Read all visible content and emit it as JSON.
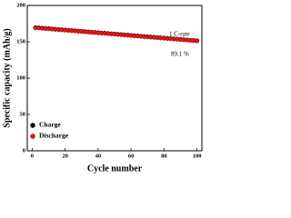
{
  "chart_data": {
    "type": "scatter",
    "xlabel": "Cycle number",
    "ylabel": "Specific capacity (mAh/g)",
    "annotations": [
      "1 C-rate",
      "89.1 %"
    ],
    "x": [
      2,
      4,
      6,
      8,
      10,
      12,
      14,
      16,
      18,
      20,
      22,
      24,
      26,
      28,
      30,
      32,
      34,
      36,
      38,
      40,
      42,
      44,
      46,
      48,
      50,
      52,
      54,
      56,
      58,
      60,
      62,
      64,
      66,
      68,
      70,
      72,
      74,
      76,
      78,
      80,
      82,
      84,
      86,
      88,
      90,
      92,
      94,
      96,
      98,
      100
    ],
    "series": [
      {
        "name": "Charge",
        "color": "#000000",
        "values": [
          169.6,
          169.3,
          168.9,
          168.5,
          168.2,
          167.8,
          167.4,
          167.0,
          166.7,
          166.3,
          165.9,
          165.6,
          165.2,
          164.8,
          164.5,
          164.1,
          163.7,
          163.3,
          163.0,
          162.6,
          162.2,
          161.9,
          161.5,
          161.1,
          160.8,
          160.4,
          160.0,
          159.6,
          159.3,
          158.9,
          158.5,
          158.2,
          157.8,
          157.4,
          157.1,
          156.7,
          156.3,
          155.9,
          155.6,
          155.2,
          154.8,
          154.5,
          154.1,
          153.7,
          153.4,
          153.0,
          152.6,
          152.2,
          151.9,
          151.5
        ]
      },
      {
        "name": "Discharge",
        "color": "#e8141a",
        "values": [
          169.2,
          168.9,
          168.5,
          168.1,
          167.8,
          167.4,
          167.0,
          166.6,
          166.3,
          165.9,
          165.5,
          165.2,
          164.8,
          164.4,
          164.1,
          163.7,
          163.3,
          162.9,
          162.6,
          162.2,
          161.8,
          161.5,
          161.1,
          160.7,
          160.4,
          160.0,
          159.6,
          159.2,
          158.9,
          158.5,
          158.1,
          157.8,
          157.4,
          157.0,
          156.7,
          156.3,
          155.9,
          155.5,
          155.2,
          154.8,
          154.4,
          154.1,
          153.7,
          153.3,
          153.0,
          152.6,
          152.2,
          151.8,
          151.5,
          151.1
        ]
      }
    ],
    "xlim": [
      -3,
      103
    ],
    "xticks": [
      0,
      20,
      40,
      60,
      80,
      100
    ],
    "ylim": [
      0,
      200
    ],
    "yticks": [
      0,
      50,
      100,
      150,
      200
    ],
    "legend": "lower left"
  }
}
